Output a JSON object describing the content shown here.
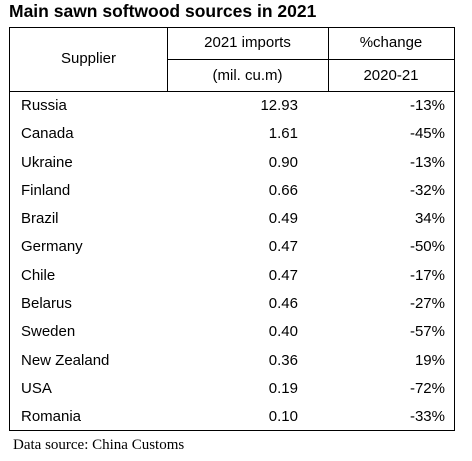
{
  "title": "Main sawn softwood sources in 2021",
  "headers": {
    "supplier": "Supplier",
    "imports": "2021 imports",
    "imports_unit": "(mil. cu.m)",
    "change": "%change",
    "change_period": "2020-21"
  },
  "rows": [
    {
      "supplier": "Russia",
      "imports": "12.93",
      "change": "-13%"
    },
    {
      "supplier": "Canada",
      "imports": "1.61",
      "change": "-45%"
    },
    {
      "supplier": "Ukraine",
      "imports": "0.90",
      "change": "-13%"
    },
    {
      "supplier": "Finland",
      "imports": "0.66",
      "change": "-32%"
    },
    {
      "supplier": "Brazil",
      "imports": "0.49",
      "change": "34%"
    },
    {
      "supplier": "Germany",
      "imports": "0.47",
      "change": "-50%"
    },
    {
      "supplier": "Chile",
      "imports": "0.47",
      "change": "-17%"
    },
    {
      "supplier": "Belarus",
      "imports": "0.46",
      "change": "-27%"
    },
    {
      "supplier": "Sweden",
      "imports": "0.40",
      "change": "-57%"
    },
    {
      "supplier": "New Zealand",
      "imports": "0.36",
      "change": "19%"
    },
    {
      "supplier": "USA",
      "imports": "0.19",
      "change": "-72%"
    },
    {
      "supplier": "Romania",
      "imports": "0.10",
      "change": "-33%"
    }
  ],
  "source": "Data source: China Customs"
}
